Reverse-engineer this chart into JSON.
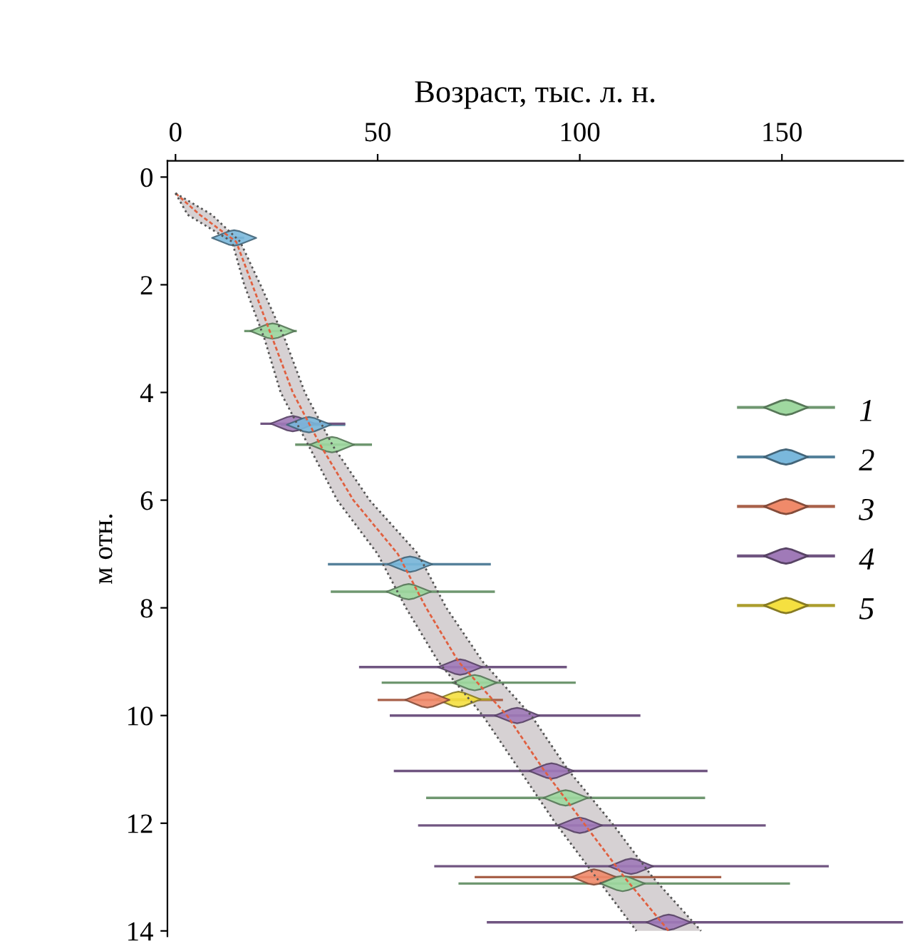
{
  "chart_data": {
    "type": "scatter",
    "xlabel": "Возраст, тыс. л. н.",
    "ylabel": "м отн.",
    "xlim": [
      -2,
      180
    ],
    "xticks": [
      0,
      50,
      100,
      150
    ],
    "ylim": [
      14.1,
      -0.3
    ],
    "yticks": [
      0,
      2,
      4,
      6,
      8,
      10,
      12,
      14
    ],
    "legend": "right",
    "grid": false,
    "marker": "diamond",
    "series": [
      {
        "type": "line",
        "color": "#e06040",
        "line_style": "dashed",
        "marker": "none",
        "x": [
          0,
          6,
          15,
          19,
          24,
          29,
          36,
          44,
          55,
          62,
          70,
          82,
          91,
          101,
          111,
          122
        ],
        "values": [
          0.3,
          0.7,
          1.2,
          2,
          3,
          4,
          5,
          6,
          7,
          8,
          9,
          10,
          11,
          12,
          13,
          14
        ]
      },
      {
        "type": "line",
        "color": "#555555",
        "line_style": "dotted",
        "marker": "none",
        "x": [
          0,
          3,
          14,
          17,
          22,
          26,
          33,
          40,
          50,
          57,
          65,
          76,
          85,
          94,
          104,
          114
        ],
        "values": [
          0.3,
          0.7,
          1.2,
          2,
          3,
          4,
          5,
          6,
          7,
          8,
          9,
          10,
          11,
          12,
          13,
          14
        ]
      },
      {
        "type": "line",
        "color": "#555555",
        "line_style": "dotted",
        "marker": "none",
        "x": [
          0,
          9,
          16,
          21,
          27,
          32,
          39,
          48,
          60,
          67,
          76,
          88,
          97,
          108,
          118,
          130
        ],
        "values": [
          0.3,
          0.7,
          1.2,
          2,
          3,
          4,
          5,
          6,
          7,
          8,
          9,
          10,
          11,
          12,
          13,
          14
        ]
      },
      {
        "name": "1",
        "color": "#9fd8a0",
        "x": [
          24,
          38.7,
          57.7,
          74,
          96.5,
          110.6
        ],
        "values": [
          2.86,
          4.97,
          7.7,
          9.39,
          11.53,
          13.12
        ],
        "xerrors": [
          [
            17,
            30
          ],
          [
            29.6,
            48.6
          ],
          [
            38.4,
            79
          ],
          [
            51,
            99
          ],
          [
            62,
            131
          ],
          [
            70,
            152
          ]
        ]
      },
      {
        "name": "2",
        "color": "#7ab8dc",
        "x": [
          14.5,
          33,
          58
        ],
        "values": [
          1.13,
          4.6,
          7.19
        ],
        "xerrors": [
          [
            12,
            17
          ],
          [
            26,
            42
          ],
          [
            37.7,
            78
          ]
        ]
      },
      {
        "name": "3",
        "color": "#f08a6a",
        "x": [
          62.3,
          103.5
        ],
        "values": [
          9.71,
          13.0
        ],
        "xerrors": [
          [
            50,
            81
          ],
          [
            74,
            135
          ]
        ]
      },
      {
        "name": "4",
        "color": "#a07ab8",
        "x": [
          29,
          70.4,
          84.5,
          93,
          100,
          112.7,
          122
        ],
        "values": [
          4.58,
          9.1,
          10.0,
          11.03,
          12.04,
          12.8,
          13.84
        ],
        "xerrors": [
          [
            21,
            42
          ],
          [
            45.4,
            96.8
          ],
          [
            53,
            115
          ],
          [
            54,
            131.6
          ],
          [
            60,
            146
          ],
          [
            64,
            161.6
          ],
          [
            77,
            180
          ]
        ]
      },
      {
        "name": "5",
        "color": "#f5e040",
        "x": [
          70
        ],
        "values": [
          9.7
        ],
        "xerrors": [
          [
            64,
            78
          ]
        ]
      }
    ]
  }
}
